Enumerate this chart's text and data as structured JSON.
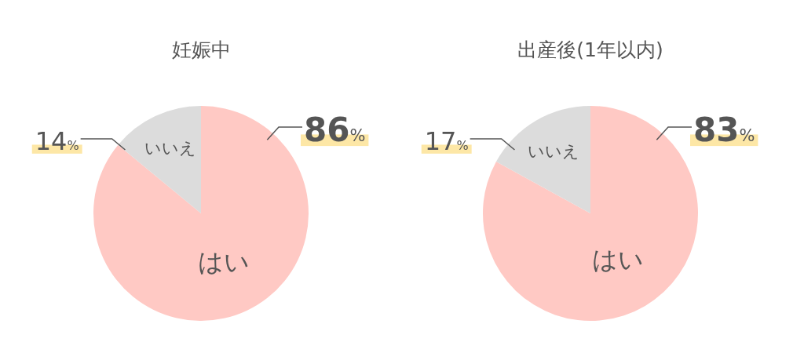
{
  "chart_data": [
    {
      "type": "pie",
      "title": "妊娠中",
      "categories": [
        "はい",
        "いいえ"
      ],
      "values": [
        86,
        14
      ],
      "colors": [
        "#ffc9c4",
        "#dcdcdc"
      ],
      "value_labels": [
        "86%",
        "14%"
      ]
    },
    {
      "type": "pie",
      "title": "出産後(1年以内)",
      "categories": [
        "はい",
        "いいえ"
      ],
      "values": [
        83,
        17
      ],
      "colors": [
        "#ffc9c4",
        "#dcdcdc"
      ],
      "value_labels": [
        "83%",
        "17%"
      ]
    }
  ]
}
